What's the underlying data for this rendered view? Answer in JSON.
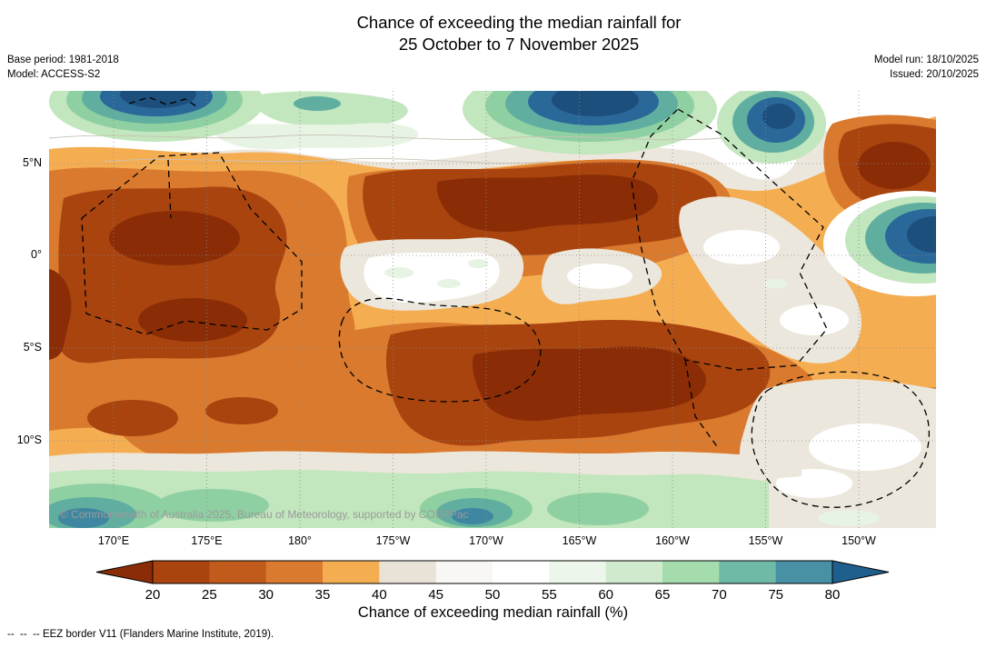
{
  "header": {
    "title_line1": "Chance of exceeding the median rainfall for",
    "title_line2": "25 October to 7 November 2025",
    "base_period": "Base period: 1981-2018",
    "model": "Model: ACCESS-S2",
    "model_run": "Model run: 18/10/2025",
    "issued": "Issued: 20/10/2025"
  },
  "map": {
    "copyright": "© Commonwealth of Australia 2025, Bureau of Meteorology, supported by COSPPac"
  },
  "footer": {
    "eez_note": "--  --  -- EEZ border V11 (Flanders Marine Institute, 2019)."
  },
  "chart_data": {
    "type": "heatmap",
    "subtype": "filled-contour-probability-map",
    "title": "Chance of exceeding the median rainfall for 25 October to 7 November 2025",
    "base_period": "1981-2018",
    "model": "ACCESS-S2",
    "model_run": "18/10/2025",
    "issued": "20/10/2025",
    "x_ticks": [
      "170°E",
      "175°E",
      "180°",
      "175°W",
      "170°W",
      "165°W",
      "160°W",
      "155°W",
      "150°W"
    ],
    "y_ticks": [
      "5°N",
      "0°",
      "5°S",
      "10°S"
    ],
    "x_range_estimate": [
      "166°E",
      "147°W"
    ],
    "y_range_estimate": [
      "9°N",
      "15°S"
    ],
    "grid": "dotted gray at 5-degree intervals",
    "colorbar": {
      "label": "Chance of exceeding median rainfall (%)",
      "tick_labels": [
        "20",
        "25",
        "30",
        "35",
        "40",
        "45",
        "50",
        "55",
        "60",
        "65",
        "70",
        "75",
        "80"
      ],
      "levels": [
        20,
        25,
        30,
        35,
        40,
        45,
        50,
        55,
        60,
        65,
        70,
        75,
        80
      ],
      "extend_low_color": "#8a2d06",
      "extend_high_color": "#1f5f8e",
      "segment_colors": [
        "#a9440f",
        "#c05b1c",
        "#d97a2e",
        "#f5ad52",
        "#e9e3d7",
        "#f8f7f3",
        "#ffffff",
        "#edf6ea",
        "#cfeacc",
        "#a5dcae",
        "#6fbaa6",
        "#4890a4"
      ]
    },
    "overlays": [
      "EEZ border V11 dashed black polygons"
    ],
    "summary": "Filled contour map over the tropical Pacific (about 166°E-147°W, 9°N-15°S). Broad 20-40% chances (dark browns and oranges) dominate the equatorial band and 0-12°S, with darkest (<25%) cores near 170°E 0-5°S, 175-160°W near the equator, and 175-160°W at 5-8°S. High chances of 60->80% (greens through dark blue) hug the far northern edge near 8-9°N (strong blue cores near 170°E, 172°W and 157°W) and the far southern edge near 13-15°S, plus a blue core at the eastern edge near 148°W 2°N. Near-median white/pale bands (40-55%) separate the regimes, including a pale patch near 178°W 3-4°S and a pale zone in the southeast near 152-148°W 8-12°S."
  }
}
